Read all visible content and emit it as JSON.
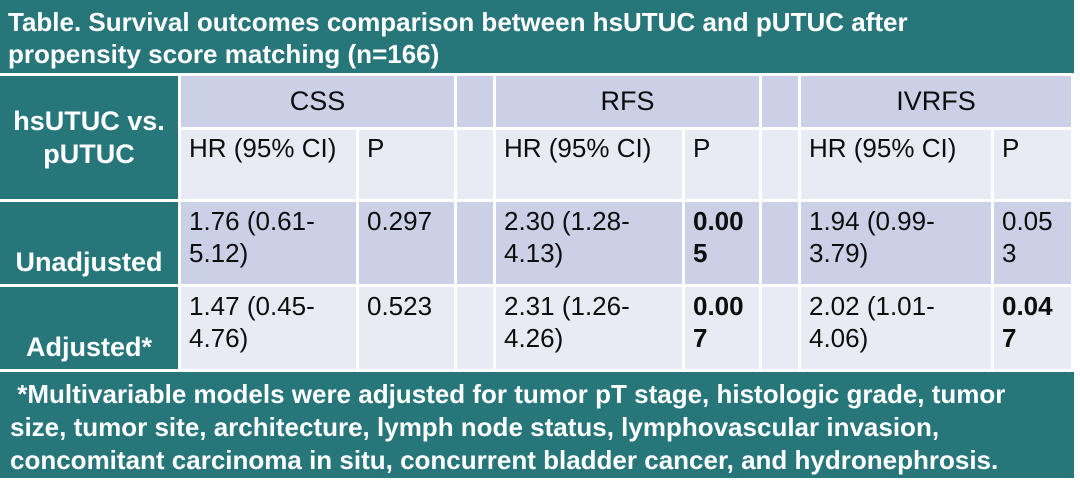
{
  "title": "Table. Survival outcomes comparison between hsUTUC and pUTUC after propensity score matching (n=166)",
  "corner_header": "hsUTUC vs. pUTUC",
  "groups": [
    {
      "label": "CSS",
      "hr_label": "HR (95% CI)",
      "p_label": "P"
    },
    {
      "label": "RFS",
      "hr_label": "HR (95% CI)",
      "p_label": "P"
    },
    {
      "label": "IVRFS",
      "hr_label": "HR (95% CI)",
      "p_label": "P"
    }
  ],
  "rows": [
    {
      "label": "Unadjusted",
      "cells": [
        {
          "hr": "1.76 (0.61-5.12)",
          "p": "0.297",
          "p_significant": false
        },
        {
          "hr": "2.30 (1.28-4.13)",
          "p": "0.005",
          "p_significant": true
        },
        {
          "hr": "1.94 (0.99-3.79)",
          "p": "0.053",
          "p_significant": false
        }
      ]
    },
    {
      "label": "Adjusted*",
      "cells": [
        {
          "hr": "1.47 (0.45-4.76)",
          "p": "0.523",
          "p_significant": false
        },
        {
          "hr": "2.31 (1.26-4.26)",
          "p": "0.007",
          "p_significant": true
        },
        {
          "hr": "2.02 (1.01-4.06)",
          "p": "0.047",
          "p_significant": true
        }
      ]
    }
  ],
  "footnote": " *Multivariable models were adjusted for tumor pT stage, histologic grade, tumor size, tumor site, architecture, lymph node status, lymphovascular invasion, concomitant carcinoma in situ, concurrent bladder cancer, and hydronephrosis.",
  "colors": {
    "teal": "#26767A",
    "band_dark": "#CBD0E6",
    "band_light": "#E9EBF4",
    "text_on_teal": "#FFFFFF",
    "text_dark": "#0D0D0D"
  }
}
